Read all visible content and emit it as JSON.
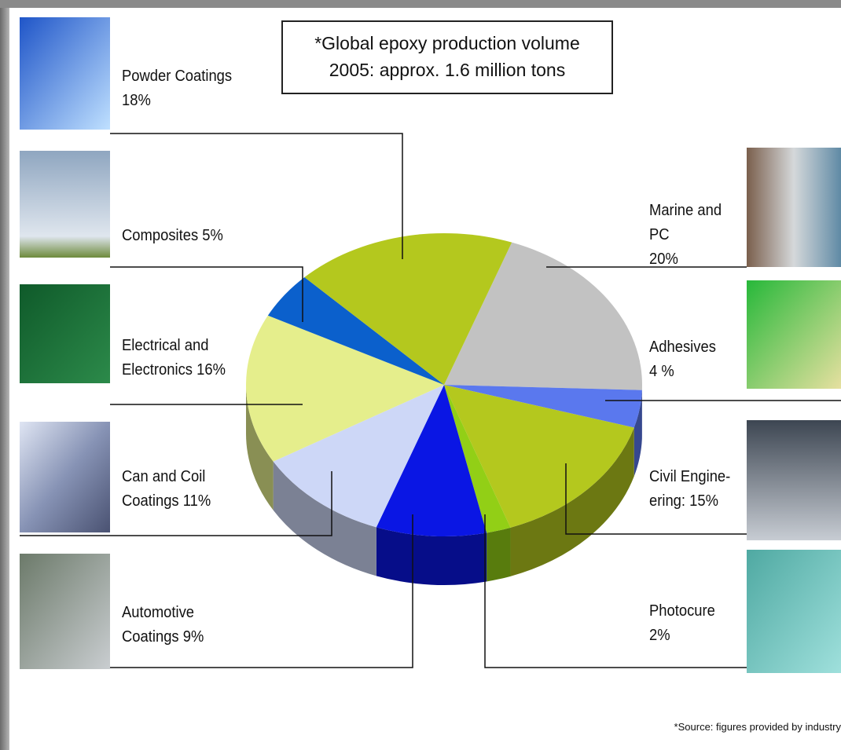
{
  "chart_data": {
    "type": "pie",
    "title": "*Global epoxy production volume\n2005: approx. 1.6 million tons",
    "categories": [
      "Marine and\nPC",
      "Adhesives",
      "Civil Engine-\nering:",
      "Photocure",
      "Automotive\nCoatings",
      "Can and Coil\nCoatings",
      "Electrical and\nElectronics",
      "Composites",
      "Powder Coatings"
    ],
    "values": [
      20,
      4,
      15,
      2,
      9,
      11,
      16,
      5,
      18
    ],
    "value_labels": [
      "20%",
      "4 %",
      "15%",
      "2%",
      "9%",
      "11%",
      "16%",
      "5%",
      "18%"
    ],
    "colors": [
      "#c2c2c2",
      "#5a78ee",
      "#b4c81e",
      "#92cf16",
      "#0a16e4",
      "#cdd7f7",
      "#e5ee8c",
      "#0b60cc",
      "#b4c81e"
    ],
    "source": "*Source: figures provided by industry"
  }
}
